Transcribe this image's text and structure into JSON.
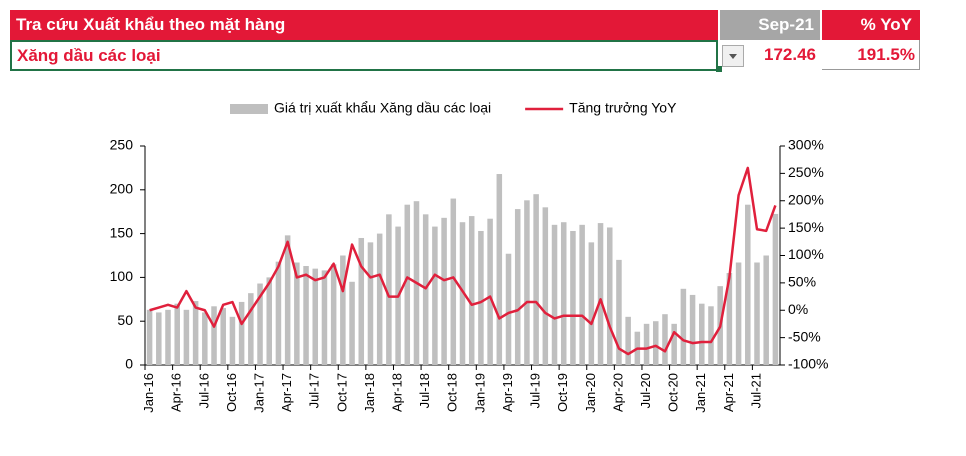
{
  "header": {
    "title": "Tra cứu Xuất khẩu theo mặt hàng",
    "month": "Sep-21",
    "yoy_label": "% YoY",
    "item": "Xăng dầu các loại",
    "value": "172.46",
    "yoy": "191.5%"
  },
  "chart_data": {
    "type": "combo",
    "categories": [
      "Jan-16",
      null,
      null,
      "Apr-16",
      null,
      null,
      "Jul-16",
      null,
      null,
      "Oct-16",
      null,
      null,
      "Jan-17",
      null,
      null,
      "Apr-17",
      null,
      null,
      "Jul-17",
      null,
      null,
      "Oct-17",
      null,
      null,
      "Jan-18",
      null,
      null,
      "Apr-18",
      null,
      null,
      "Jul-18",
      null,
      null,
      "Oct-18",
      null,
      null,
      "Jan-19",
      null,
      null,
      "Apr-19",
      null,
      null,
      "Jul-19",
      null,
      null,
      "Oct-19",
      null,
      null,
      "Jan-20",
      null,
      null,
      "Apr-20",
      null,
      null,
      "Jul-20",
      null,
      null,
      "Oct-20",
      null,
      null,
      "Jan-21",
      null,
      null,
      "Apr-21",
      null,
      null,
      "Jul-21",
      null,
      null
    ],
    "series": [
      {
        "name": "Giá trị xuất khẩu Xăng dầu các loại",
        "type": "bar",
        "color": "#bfbfbf",
        "axis": "y",
        "values": [
          63,
          60,
          63,
          70,
          63,
          73,
          60,
          67,
          65,
          55,
          72,
          82,
          93,
          100,
          118,
          148,
          117,
          113,
          110,
          108,
          115,
          125,
          95,
          145,
          140,
          150,
          172,
          158,
          183,
          187,
          172,
          158,
          168,
          190,
          163,
          170,
          153,
          167,
          218,
          127,
          178,
          188,
          195,
          180,
          160,
          163,
          153,
          160,
          140,
          162,
          157,
          120,
          55,
          38,
          47,
          50,
          58,
          47,
          87,
          80,
          70,
          67,
          90,
          105,
          117,
          183,
          117,
          125,
          172.46
        ]
      },
      {
        "name": "Tăng trưởng YoY",
        "type": "line",
        "color": "#e0203c",
        "axis": "y2",
        "values": [
          0,
          5,
          10,
          5,
          35,
          5,
          0,
          -30,
          10,
          15,
          -25,
          0,
          25,
          50,
          80,
          125,
          60,
          65,
          55,
          60,
          85,
          35,
          120,
          80,
          60,
          65,
          25,
          25,
          60,
          50,
          40,
          65,
          55,
          60,
          35,
          10,
          15,
          25,
          -15,
          -5,
          0,
          15,
          15,
          -5,
          -15,
          -10,
          -10,
          -10,
          -25,
          20,
          -30,
          -70,
          -80,
          -70,
          -70,
          -65,
          -75,
          -40,
          -55,
          -60,
          -58,
          -58,
          -30,
          60,
          210,
          260,
          148,
          145,
          191.5
        ]
      }
    ],
    "ylim": [
      0,
      250
    ],
    "yticks": [
      0,
      50,
      100,
      150,
      200,
      250
    ],
    "y2lim": [
      -100,
      300
    ],
    "y2ticks": [
      {
        "value": -100,
        "label": "-100%"
      },
      {
        "value": -50,
        "label": "-50%"
      },
      {
        "value": 0,
        "label": "0%"
      },
      {
        "value": 50,
        "label": "50%"
      },
      {
        "value": 100,
        "label": "100%"
      },
      {
        "value": 150,
        "label": "150%"
      },
      {
        "value": 200,
        "label": "200%"
      },
      {
        "value": 250,
        "label": "250%"
      },
      {
        "value": 300,
        "label": "300%"
      }
    ],
    "grid": false,
    "legend": "top"
  }
}
